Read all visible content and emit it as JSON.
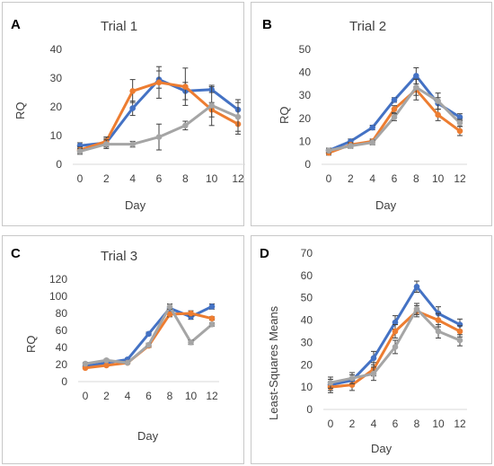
{
  "chart_data": [
    {
      "type": "line",
      "panel_label": "A",
      "title": "Trial 1",
      "xlabel": "Day",
      "ylabel": "RQ",
      "x": [
        0,
        2,
        4,
        6,
        8,
        10,
        12
      ],
      "ylim": [
        0,
        40
      ],
      "yticks": [
        0,
        10,
        20,
        30,
        40
      ],
      "grid": false,
      "series": [
        {
          "color": "#4472C4",
          "values": [
            6.5,
            7.5,
            19.5,
            29.5,
            25.5,
            26,
            19
          ],
          "errors": [
            1,
            1.5,
            2.5,
            3,
            3,
            1,
            2.5
          ]
        },
        {
          "color": "#ED7D31",
          "values": [
            5,
            8,
            25.5,
            28.5,
            27,
            19,
            14
          ],
          "errors": [
            1,
            1.5,
            4,
            5.5,
            6.5,
            2.5,
            2.5
          ]
        },
        {
          "color": "#A5A5A5",
          "values": [
            4.5,
            7,
            7,
            9.5,
            13.5,
            20.5,
            16.5
          ],
          "errors": [
            1,
            1.5,
            1,
            4.5,
            1.5,
            7,
            6
          ]
        }
      ]
    },
    {
      "type": "line",
      "panel_label": "B",
      "title": "Trial 2",
      "xlabel": "Day",
      "ylabel": "RQ",
      "x": [
        0,
        2,
        4,
        6,
        8,
        10,
        12
      ],
      "ylim": [
        0,
        50
      ],
      "yticks": [
        0,
        10,
        20,
        30,
        40,
        50
      ],
      "grid": false,
      "series": [
        {
          "color": "#4472C4",
          "values": [
            6,
            10,
            16,
            28,
            38.5,
            26.5,
            20.5
          ],
          "errors": [
            1,
            1,
            1,
            1,
            3.5,
            2.5,
            1.5
          ]
        },
        {
          "color": "#ED7D31",
          "values": [
            5,
            8.5,
            10,
            24,
            32.5,
            21.5,
            14.5
          ],
          "errors": [
            1,
            1,
            1,
            1.5,
            4.5,
            2.5,
            2
          ]
        },
        {
          "color": "#A5A5A5",
          "values": [
            6,
            8,
            9.5,
            20.5,
            33.5,
            27.5,
            18
          ],
          "errors": [
            1,
            1,
            1,
            1.5,
            3.5,
            3.5,
            1.5
          ]
        }
      ]
    },
    {
      "type": "line",
      "panel_label": "C",
      "title": "Trial 3",
      "xlabel": "Day",
      "ylabel": "RQ",
      "x": [
        0,
        2,
        4,
        6,
        8,
        10,
        12
      ],
      "ylim": [
        0,
        120
      ],
      "yticks": [
        0,
        20,
        40,
        60,
        80,
        100,
        120
      ],
      "grid": false,
      "series": [
        {
          "color": "#4472C4",
          "values": [
            18,
            22,
            26,
            56,
            86,
            76,
            88
          ],
          "errors": [
            1,
            1,
            1.5,
            2,
            5,
            3,
            3
          ]
        },
        {
          "color": "#ED7D31",
          "values": [
            16,
            19,
            22,
            42,
            79,
            80,
            74
          ],
          "errors": [
            1,
            1,
            1,
            2,
            3,
            3,
            2
          ]
        },
        {
          "color": "#A5A5A5",
          "values": [
            21,
            25,
            22,
            43,
            88,
            46,
            67
          ],
          "errors": [
            1.5,
            1.5,
            1.5,
            2,
            3,
            2.5,
            2
          ]
        }
      ]
    },
    {
      "type": "line",
      "panel_label": "D",
      "title": "",
      "xlabel": "Day",
      "ylabel": "Least-Squares Means",
      "x": [
        0,
        2,
        4,
        6,
        8,
        10,
        12
      ],
      "ylim": [
        0,
        70
      ],
      "yticks": [
        0,
        10,
        20,
        30,
        40,
        50,
        60,
        70
      ],
      "grid": false,
      "series": [
        {
          "color": "#4472C4",
          "values": [
            11,
            13,
            23,
            39,
            55,
            43,
            38
          ],
          "errors": [
            2.5,
            2.5,
            3,
            3,
            2.5,
            3,
            2.5
          ]
        },
        {
          "color": "#ED7D31",
          "values": [
            10,
            11,
            18,
            35,
            44,
            40,
            35
          ],
          "errors": [
            2.5,
            2.5,
            3,
            3,
            2.5,
            3,
            2.5
          ]
        },
        {
          "color": "#A5A5A5",
          "values": [
            12,
            14,
            16,
            28,
            45,
            35,
            31
          ],
          "errors": [
            2.5,
            2.5,
            3,
            3,
            2.5,
            3,
            2.5
          ]
        }
      ]
    }
  ]
}
